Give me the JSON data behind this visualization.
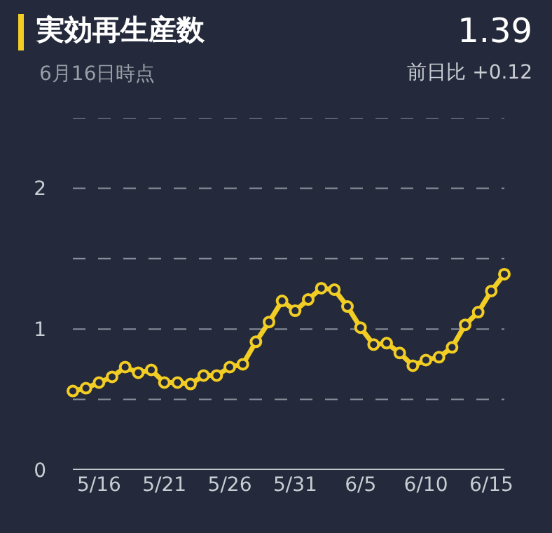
{
  "chart_data": {
    "type": "line",
    "title": "実効再生産数",
    "subtitle": "6月16日時点",
    "annotations": [
      "1.39",
      "前日比 +0.12"
    ],
    "x": [
      "--05-14",
      "--05-15",
      "--05-16",
      "--05-17",
      "--05-18",
      "--05-19",
      "--05-20",
      "--05-21",
      "--05-22",
      "--05-23",
      "--05-24",
      "--05-25",
      "--05-26",
      "--05-27",
      "--05-28",
      "--05-29",
      "--05-30",
      "--05-31",
      "--06-01",
      "--06-02",
      "--06-03",
      "--06-04",
      "--06-05",
      "--06-06",
      "--06-07",
      "--06-08",
      "--06-09",
      "--06-10",
      "--06-11",
      "--06-12",
      "--06-13",
      "--06-14",
      "--06-15",
      "--06-16"
    ],
    "series": [
      {
        "color": "#f2cd24",
        "values": [
          0.56,
          0.58,
          0.62,
          0.66,
          0.73,
          0.69,
          0.71,
          0.62,
          0.62,
          0.61,
          0.67,
          0.67,
          0.73,
          0.75,
          0.91,
          1.05,
          1.2,
          1.13,
          1.21,
          1.29,
          1.28,
          1.16,
          1.01,
          0.89,
          0.9,
          0.83,
          0.74,
          0.78,
          0.8,
          0.87,
          1.03,
          1.12,
          1.27,
          1.39
        ]
      }
    ],
    "xlim": [
      "--05-14",
      "--06-16"
    ],
    "xticks": [
      {
        "value": "--05-16",
        "label": "5/16"
      },
      {
        "value": "--05-21",
        "label": "5/21"
      },
      {
        "value": "--05-26",
        "label": "5/26"
      },
      {
        "value": "--05-31",
        "label": "5/31"
      },
      {
        "value": "--06-05",
        "label": "6/5"
      },
      {
        "value": "--06-10",
        "label": "6/10"
      },
      {
        "value": "--06-15",
        "label": "6/15"
      }
    ],
    "ylim": [
      0,
      2.5
    ],
    "yticks": [
      0,
      {
        "value": 0.5,
        "label": null
      },
      1,
      {
        "value": 1.5,
        "label": null
      },
      2,
      {
        "value": 2.5,
        "label": null
      }
    ],
    "grid": "y",
    "marker": "circle",
    "line_style": "solid"
  }
}
